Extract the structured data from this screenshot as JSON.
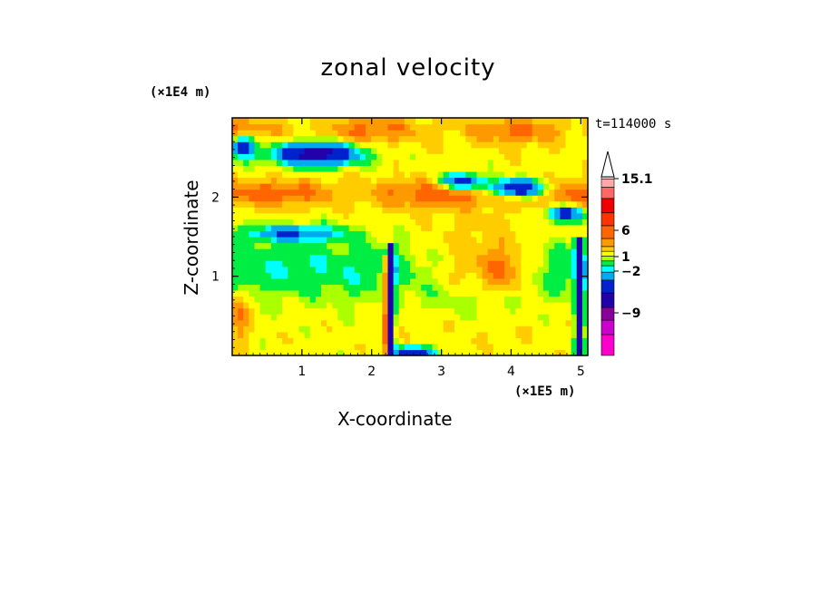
{
  "chart_data": {
    "type": "heatmap",
    "title": "zonal velocity",
    "xlabel": "X-coordinate",
    "ylabel": "Z-coordinate",
    "x_unit": "(×1E5 m)",
    "z_unit": "(×1E4 m)",
    "time_label": "t=114000 s",
    "xlim": [
      0,
      5.1
    ],
    "ylim": [
      0,
      3.0
    ],
    "x_ticks": [
      "1",
      "2",
      "3",
      "4",
      "5"
    ],
    "y_ticks": [
      "1",
      "2"
    ],
    "colorbar": {
      "labels": [
        "15.1",
        "6",
        "1",
        "−2",
        "−9"
      ],
      "colors": [
        "#ff00cc",
        "#cc00cc",
        "#880099",
        "#2200aa",
        "#0022cc",
        "#00aaee",
        "#00ffff",
        "#00ee44",
        "#aaff00",
        "#ffff00",
        "#ffcc00",
        "#ff9900",
        "#ff6600",
        "#ff3300",
        "#ee0000",
        "#ff6666",
        "#ffaaaa",
        "#ffcccc"
      ]
    }
  }
}
